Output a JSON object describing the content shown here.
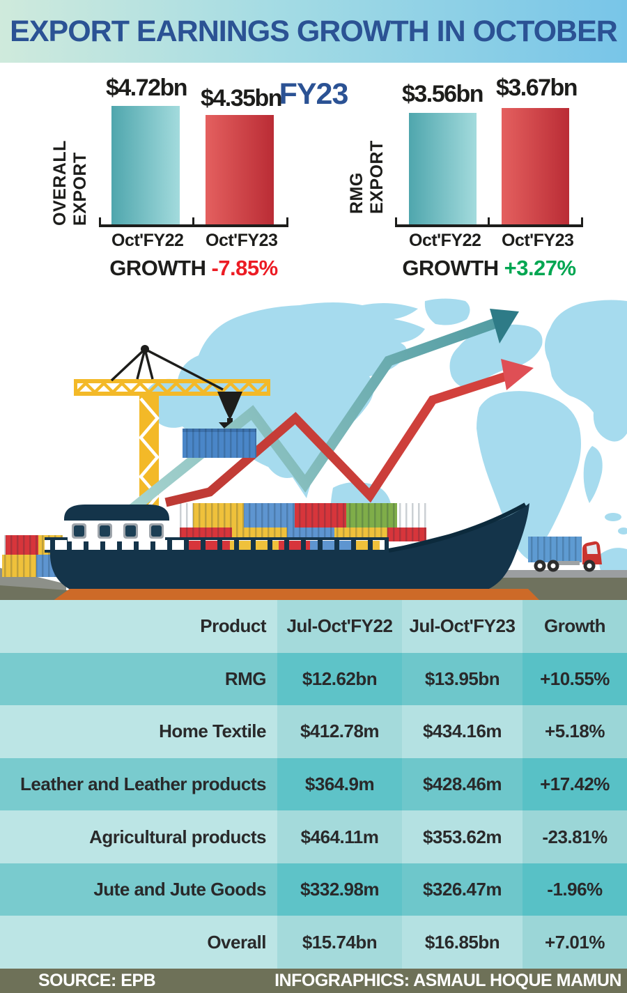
{
  "banner": {
    "title": "EXPORT EARNINGS GROWTH IN OCTOBER FY23"
  },
  "charts": [
    {
      "ylabel": "OVERALL EXPORT",
      "bars": [
        {
          "period": "Oct'FY22",
          "value": "$4.72bn"
        },
        {
          "period": "Oct'FY23",
          "value": "$4.35bn"
        }
      ],
      "growth_label": "GROWTH",
      "growth": "-7.85%",
      "growth_color": "#ec1c24"
    },
    {
      "ylabel": "RMG EXPORT",
      "bars": [
        {
          "period": "Oct'FY22",
          "value": "$3.56bn"
        },
        {
          "period": "Oct'FY23",
          "value": "$3.67bn"
        }
      ],
      "growth_label": "GROWTH",
      "growth": "+3.27%",
      "growth_color": "#00a651"
    }
  ],
  "chart_data": [
    {
      "type": "bar",
      "title": "OVERALL EXPORT",
      "categories": [
        "Oct'FY22",
        "Oct'FY23"
      ],
      "values": [
        4.72,
        4.35
      ],
      "value_labels": [
        "$4.72bn",
        "$4.35bn"
      ],
      "ylabel": "OVERALL EXPORT",
      "unit": "USD billion",
      "growth": "-7.85%",
      "bar_colors": [
        "#6cbfc5",
        "#cc3e44"
      ],
      "legend": "none",
      "grid": false
    },
    {
      "type": "bar",
      "title": "RMG EXPORT",
      "categories": [
        "Oct'FY22",
        "Oct'FY23"
      ],
      "values": [
        3.56,
        3.67
      ],
      "value_labels": [
        "$3.56bn",
        "$3.67bn"
      ],
      "ylabel": "RMG EXPORT",
      "unit": "USD billion",
      "growth": "+3.27%",
      "bar_colors": [
        "#6cbfc5",
        "#cc3e44"
      ],
      "legend": "none",
      "grid": false
    },
    {
      "type": "table",
      "title": "Export earnings Jul-Oct by product",
      "headers": [
        "Product",
        "Jul-Oct'FY22",
        "Jul-Oct'FY23",
        "Growth"
      ],
      "rows": [
        [
          "RMG",
          "$12.62bn",
          "$13.95bn",
          "+10.55%"
        ],
        [
          "Home Textile",
          "$412.78m",
          "$434.16m",
          "+5.18%"
        ],
        [
          "Leather and Leather products",
          "$364.9m",
          "$428.46m",
          "+17.42%"
        ],
        [
          "Agricultural products",
          "$464.11m",
          "$353.62m",
          "-23.81%"
        ],
        [
          "Jute and Jute Goods",
          "$332.98m",
          "$326.47m",
          "-1.96%"
        ],
        [
          "Overall",
          "$15.74bn",
          "$16.85bn",
          "+7.01%"
        ]
      ]
    }
  ],
  "table": {
    "headers": [
      "Product",
      "Jul-Oct'FY22",
      "Jul-Oct'FY23",
      "Growth"
    ],
    "rows": [
      [
        "RMG",
        "$12.62bn",
        "$13.95bn",
        "+10.55%"
      ],
      [
        "Home Textile",
        "$412.78m",
        "$434.16m",
        "+5.18%"
      ],
      [
        "Leather and Leather products",
        "$364.9m",
        "$428.46m",
        "+17.42%"
      ],
      [
        "Agricultural products",
        "$464.11m",
        "$353.62m",
        "-23.81%"
      ],
      [
        "Jute and Jute Goods",
        "$332.98m",
        "$326.47m",
        "-1.96%"
      ],
      [
        "Overall",
        "$15.74bn",
        "$16.85bn",
        "+7.01%"
      ]
    ]
  },
  "footer": {
    "source": "SOURCE: EPB",
    "credit": "INFOGRAPHICS: ASMAUL HOQUE MAMUN"
  },
  "colors": {
    "banner_gradient": [
      "#cfeadc",
      "#78c5e8"
    ],
    "title_blue": "#2b5294",
    "bar_teal": "#6cbfc5",
    "bar_red": "#cc3e44",
    "growth_negative": "#ec1c24",
    "growth_positive": "#00a651",
    "map_blue": "#a6dbee",
    "crane_yellow": "#f3b928",
    "ship_navy": "#14344a",
    "orange_strip": "#cd6a28",
    "footer_olive": "#6e7158",
    "table_light": "#bce5e5",
    "table_dark": "#5ec3c8"
  }
}
